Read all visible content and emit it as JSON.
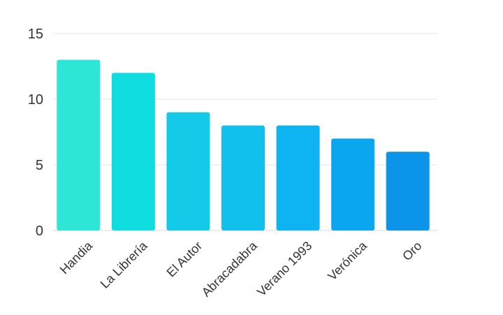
{
  "chart_data": {
    "type": "bar",
    "title": "",
    "xlabel": "",
    "ylabel": "",
    "categories": [
      "Handia",
      "La Librería",
      "El Autor",
      "Abracadabra",
      "Verano 1993",
      "Verónica",
      "Oro"
    ],
    "values": [
      13,
      12,
      9,
      8,
      8,
      7,
      6
    ],
    "ylim": [
      0,
      15
    ],
    "yticks": [
      0,
      5,
      10,
      15
    ],
    "grid": true,
    "legend": "none",
    "bar_colors": [
      "#2ee6d6",
      "#0fdde0",
      "#13cbe8",
      "#12c0ee",
      "#0db4f1",
      "#0aa6f0",
      "#0c93ea"
    ]
  }
}
